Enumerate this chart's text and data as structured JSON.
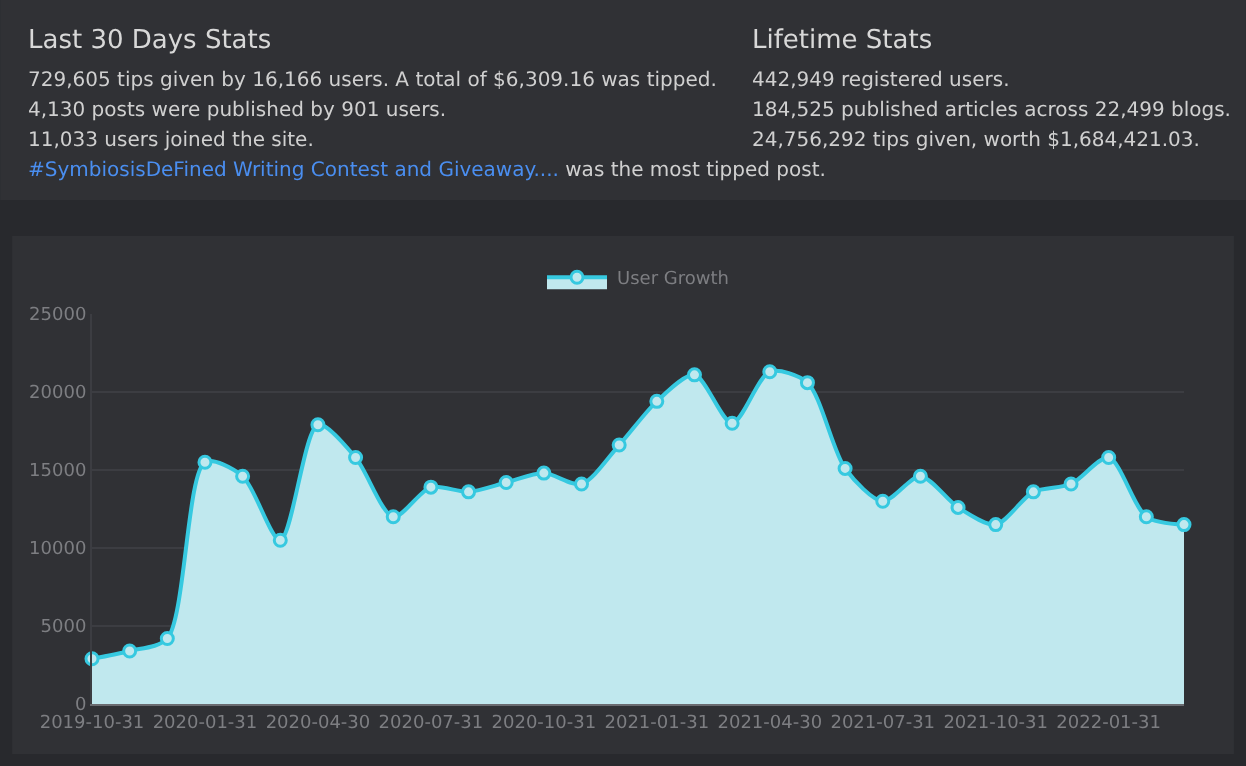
{
  "chart_data": {
    "type": "area",
    "annotations": [
      "Last 30 Days Stats",
      "729,605 tips given by 16,166 users. A total of $6,309.16 was tipped.",
      "4,130 posts were published by 901 users.",
      "11,033 users joined the site.",
      "#SymbiosisDeFined Writing Contest and Giveaway....",
      "was the most tipped post.",
      "Lifetime Stats",
      "442,949 registered users.",
      "184,525 published articles across 22,499 blogs.",
      "24,756,292 tips given, worth $1,684,421.03."
    ],
    "categories": [
      "2019-10-31",
      null,
      null,
      "2020-01-31",
      null,
      null,
      "2020-04-30",
      null,
      null,
      "2020-07-31",
      null,
      null,
      "2020-10-31",
      null,
      null,
      "2021-01-31",
      null,
      null,
      "2021-04-30",
      null,
      null,
      "2021-07-31",
      null,
      null,
      "2021-10-31",
      null,
      null,
      "2022-01-31",
      null,
      null
    ],
    "series": [
      {
        "name": "User Growth",
        "color": "#36c9e0",
        "values": [
          2900,
          3400,
          4200,
          15500,
          14600,
          10500,
          17900,
          15800,
          12000,
          13900,
          13600,
          14200,
          14800,
          14100,
          16600,
          19400,
          21100,
          18000,
          21300,
          20600,
          15100,
          13000,
          14600,
          12600,
          11500,
          13600,
          14100,
          15800,
          12000,
          11500
        ]
      }
    ],
    "ylim": [
      0,
      25000
    ],
    "yticks": [
      0,
      5000,
      10000,
      15000,
      20000,
      25000
    ],
    "grid": "y",
    "legend": "top",
    "marker": "circle",
    "line_style": "solid"
  }
}
